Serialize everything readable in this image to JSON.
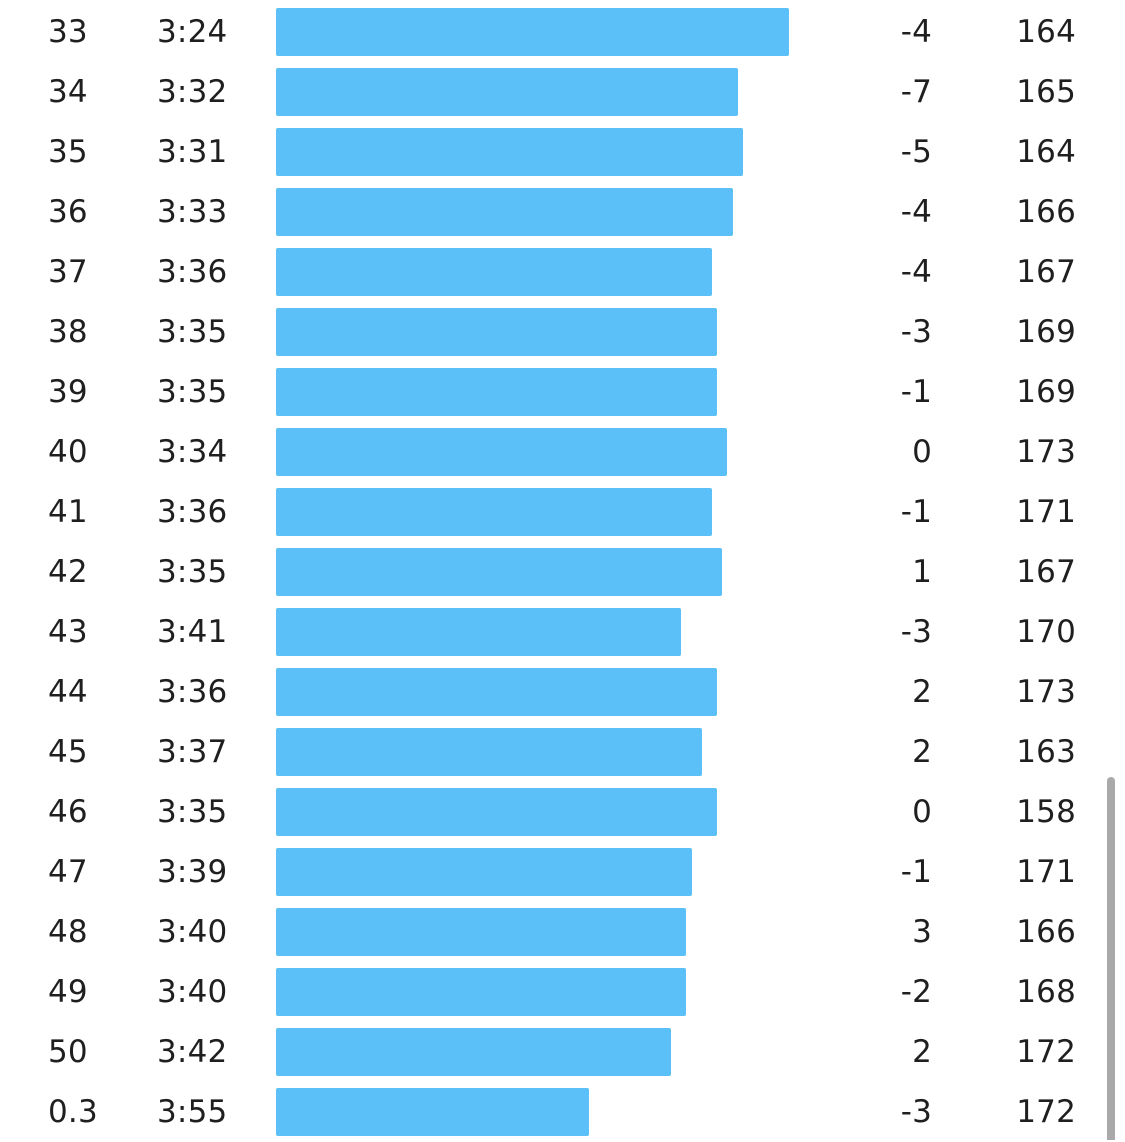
{
  "splits": {
    "bar_color": "#5bc0f8",
    "rows": [
      {
        "km": "33",
        "pace": "3:24",
        "elevation": "-4",
        "heart_rate": "164",
        "pace_level": 1.0
      },
      {
        "km": "34",
        "pace": "3:32",
        "elevation": "-7",
        "heart_rate": "165",
        "pace_level": 0.9
      },
      {
        "km": "35",
        "pace": "3:31",
        "elevation": "-5",
        "heart_rate": "164",
        "pace_level": 0.91
      },
      {
        "km": "36",
        "pace": "3:33",
        "elevation": "-4",
        "heart_rate": "166",
        "pace_level": 0.89
      },
      {
        "km": "37",
        "pace": "3:36",
        "elevation": "-4",
        "heart_rate": "167",
        "pace_level": 0.85
      },
      {
        "km": "38",
        "pace": "3:35",
        "elevation": "-3",
        "heart_rate": "169",
        "pace_level": 0.86
      },
      {
        "km": "39",
        "pace": "3:35",
        "elevation": "-1",
        "heart_rate": "169",
        "pace_level": 0.86
      },
      {
        "km": "40",
        "pace": "3:34",
        "elevation": "0",
        "heart_rate": "173",
        "pace_level": 0.88
      },
      {
        "km": "41",
        "pace": "3:36",
        "elevation": "-1",
        "heart_rate": "171",
        "pace_level": 0.85
      },
      {
        "km": "42",
        "pace": "3:35",
        "elevation": "1",
        "heart_rate": "167",
        "pace_level": 0.87
      },
      {
        "km": "43",
        "pace": "3:41",
        "elevation": "-3",
        "heart_rate": "170",
        "pace_level": 0.79
      },
      {
        "km": "44",
        "pace": "3:36",
        "elevation": "2",
        "heart_rate": "173",
        "pace_level": 0.86
      },
      {
        "km": "45",
        "pace": "3:37",
        "elevation": "2",
        "heart_rate": "163",
        "pace_level": 0.83
      },
      {
        "km": "46",
        "pace": "3:35",
        "elevation": "0",
        "heart_rate": "158",
        "pace_level": 0.86
      },
      {
        "km": "47",
        "pace": "3:39",
        "elevation": "-1",
        "heart_rate": "171",
        "pace_level": 0.81
      },
      {
        "km": "48",
        "pace": "3:40",
        "elevation": "3",
        "heart_rate": "166",
        "pace_level": 0.8
      },
      {
        "km": "49",
        "pace": "3:40",
        "elevation": "-2",
        "heart_rate": "168",
        "pace_level": 0.8
      },
      {
        "km": "50",
        "pace": "3:42",
        "elevation": "2",
        "heart_rate": "172",
        "pace_level": 0.77
      },
      {
        "km": "0.3",
        "pace": "3:55",
        "elevation": "-3",
        "heart_rate": "172",
        "pace_level": 0.61
      }
    ]
  }
}
